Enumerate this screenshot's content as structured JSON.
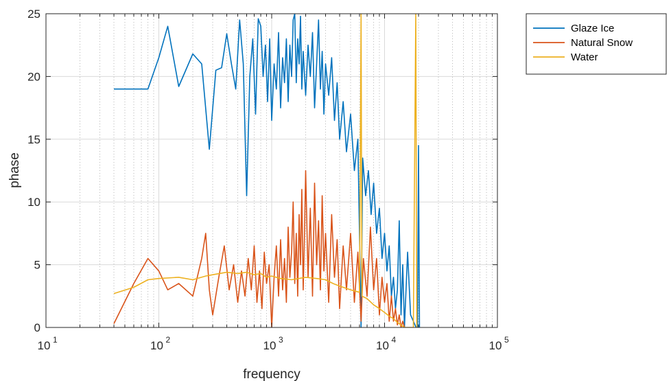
{
  "chart_data": {
    "type": "line",
    "title": "",
    "xlabel": "frequency",
    "ylabel": "phase",
    "xscale": "log",
    "xlim": [
      10,
      100000
    ],
    "ylim": [
      0,
      25
    ],
    "grid": true,
    "minor_grid": true,
    "legend_position": "outside-top-right",
    "x_ticks": [
      {
        "base": "10",
        "exp": "1"
      },
      {
        "base": "10",
        "exp": "2"
      },
      {
        "base": "10",
        "exp": "3"
      },
      {
        "base": "10",
        "exp": "4"
      },
      {
        "base": "10",
        "exp": "5"
      }
    ],
    "y_ticks": [
      "0",
      "5",
      "10",
      "15",
      "20",
      "25"
    ],
    "series": [
      {
        "name": "Glaze Ice",
        "color": "#0072BD",
        "points": [
          [
            40,
            19.0
          ],
          [
            60,
            19.0
          ],
          [
            80,
            19.0
          ],
          [
            100,
            21.5
          ],
          [
            120,
            24.0
          ],
          [
            150,
            19.2
          ],
          [
            200,
            21.8
          ],
          [
            240,
            21.0
          ],
          [
            280,
            14.2
          ],
          [
            320,
            20.5
          ],
          [
            360,
            20.7
          ],
          [
            400,
            23.4
          ],
          [
            440,
            21.0
          ],
          [
            480,
            19.0
          ],
          [
            520,
            24.5
          ],
          [
            560,
            21.0
          ],
          [
            600,
            10.5
          ],
          [
            640,
            20.0
          ],
          [
            680,
            23.0
          ],
          [
            720,
            17.0
          ],
          [
            760,
            24.6
          ],
          [
            800,
            24.0
          ],
          [
            840,
            20.0
          ],
          [
            880,
            22.5
          ],
          [
            920,
            18.0
          ],
          [
            960,
            23.0
          ],
          [
            1000,
            16.5
          ],
          [
            1050,
            21.0
          ],
          [
            1100,
            19.0
          ],
          [
            1150,
            23.5
          ],
          [
            1200,
            17.5
          ],
          [
            1250,
            21.5
          ],
          [
            1300,
            19.5
          ],
          [
            1350,
            23.0
          ],
          [
            1400,
            18.0
          ],
          [
            1450,
            22.5
          ],
          [
            1500,
            20.0
          ],
          [
            1550,
            24.5
          ],
          [
            1600,
            25.0
          ],
          [
            1650,
            19.5
          ],
          [
            1700,
            23.0
          ],
          [
            1750,
            21.0
          ],
          [
            1800,
            24.8
          ],
          [
            1850,
            19.0
          ],
          [
            1900,
            22.0
          ],
          [
            2000,
            18.5
          ],
          [
            2100,
            22.5
          ],
          [
            2200,
            20.0
          ],
          [
            2300,
            23.5
          ],
          [
            2400,
            17.5
          ],
          [
            2500,
            21.0
          ],
          [
            2600,
            24.5
          ],
          [
            2700,
            19.0
          ],
          [
            2800,
            22.0
          ],
          [
            2900,
            17.0
          ],
          [
            3000,
            21.0
          ],
          [
            3200,
            18.5
          ],
          [
            3400,
            21.5
          ],
          [
            3600,
            16.5
          ],
          [
            3800,
            19.5
          ],
          [
            4000,
            15.0
          ],
          [
            4300,
            18.0
          ],
          [
            4600,
            14.0
          ],
          [
            5000,
            17.0
          ],
          [
            5400,
            12.5
          ],
          [
            5800,
            15.0
          ],
          [
            6200,
            0.0
          ],
          [
            6400,
            13.5
          ],
          [
            6800,
            10.5
          ],
          [
            7200,
            12.5
          ],
          [
            7600,
            9.0
          ],
          [
            8000,
            11.5
          ],
          [
            8500,
            7.5
          ],
          [
            9000,
            9.5
          ],
          [
            9500,
            5.5
          ],
          [
            10000,
            7.5
          ],
          [
            10500,
            4.5
          ],
          [
            11000,
            6.5
          ],
          [
            11500,
            2.5
          ],
          [
            12000,
            4.0
          ],
          [
            12500,
            1.5
          ],
          [
            13000,
            3.0
          ],
          [
            13500,
            8.5
          ],
          [
            14000,
            1.0
          ],
          [
            14500,
            5.0
          ],
          [
            15000,
            0.0
          ],
          [
            16000,
            6.0
          ],
          [
            17000,
            1.0
          ],
          [
            18000,
            0.5
          ],
          [
            19000,
            0.0
          ],
          [
            19600,
            0.0
          ],
          [
            20000,
            14.5
          ],
          [
            20400,
            0.0
          ]
        ]
      },
      {
        "name": "Natural Snow",
        "color": "#D95319",
        "points": [
          [
            40,
            0.3
          ],
          [
            60,
            3.5
          ],
          [
            80,
            5.5
          ],
          [
            100,
            4.5
          ],
          [
            120,
            3.0
          ],
          [
            150,
            3.5
          ],
          [
            200,
            2.5
          ],
          [
            240,
            5.5
          ],
          [
            260,
            7.5
          ],
          [
            280,
            3.0
          ],
          [
            300,
            1.0
          ],
          [
            340,
            4.0
          ],
          [
            380,
            6.5
          ],
          [
            420,
            3.0
          ],
          [
            460,
            5.0
          ],
          [
            500,
            2.0
          ],
          [
            540,
            4.5
          ],
          [
            580,
            2.5
          ],
          [
            620,
            5.5
          ],
          [
            660,
            3.0
          ],
          [
            700,
            6.5
          ],
          [
            740,
            2.0
          ],
          [
            780,
            4.5
          ],
          [
            820,
            1.5
          ],
          [
            860,
            6.0
          ],
          [
            900,
            3.5
          ],
          [
            950,
            5.0
          ],
          [
            1000,
            0.0
          ],
          [
            1050,
            4.0
          ],
          [
            1100,
            6.5
          ],
          [
            1150,
            2.5
          ],
          [
            1200,
            7.0
          ],
          [
            1250,
            3.0
          ],
          [
            1300,
            5.5
          ],
          [
            1350,
            2.0
          ],
          [
            1400,
            8.0
          ],
          [
            1450,
            4.0
          ],
          [
            1500,
            6.0
          ],
          [
            1550,
            10.0
          ],
          [
            1600,
            3.5
          ],
          [
            1650,
            7.5
          ],
          [
            1700,
            2.5
          ],
          [
            1750,
            9.0
          ],
          [
            1800,
            5.0
          ],
          [
            1850,
            11.0
          ],
          [
            1900,
            3.0
          ],
          [
            1950,
            7.0
          ],
          [
            2000,
            12.5
          ],
          [
            2100,
            4.0
          ],
          [
            2200,
            9.5
          ],
          [
            2300,
            2.5
          ],
          [
            2400,
            11.5
          ],
          [
            2500,
            5.0
          ],
          [
            2600,
            8.5
          ],
          [
            2700,
            3.0
          ],
          [
            2800,
            10.5
          ],
          [
            2900,
            4.5
          ],
          [
            3000,
            7.5
          ],
          [
            3200,
            2.0
          ],
          [
            3400,
            9.0
          ],
          [
            3600,
            4.0
          ],
          [
            3800,
            7.0
          ],
          [
            4000,
            1.5
          ],
          [
            4300,
            6.5
          ],
          [
            4600,
            3.0
          ],
          [
            5000,
            7.5
          ],
          [
            5400,
            2.0
          ],
          [
            5800,
            6.0
          ],
          [
            6200,
            0.5
          ],
          [
            6500,
            5.5
          ],
          [
            7000,
            2.5
          ],
          [
            7500,
            8.0
          ],
          [
            8000,
            3.0
          ],
          [
            8500,
            5.5
          ],
          [
            9000,
            1.0
          ],
          [
            9500,
            4.0
          ],
          [
            10000,
            2.0
          ],
          [
            10500,
            3.5
          ],
          [
            11000,
            0.5
          ],
          [
            11500,
            2.5
          ],
          [
            12000,
            0.5
          ],
          [
            12500,
            1.5
          ],
          [
            13000,
            0.2
          ],
          [
            13500,
            1.0
          ],
          [
            14000,
            0.0
          ],
          [
            14500,
            0.5
          ],
          [
            15000,
            0.0
          ]
        ]
      },
      {
        "name": "Water",
        "color": "#EDB120",
        "points": [
          [
            40,
            2.7
          ],
          [
            60,
            3.2
          ],
          [
            80,
            3.8
          ],
          [
            100,
            3.9
          ],
          [
            150,
            4.0
          ],
          [
            200,
            3.8
          ],
          [
            260,
            4.1
          ],
          [
            300,
            4.2
          ],
          [
            400,
            4.4
          ],
          [
            500,
            4.3
          ],
          [
            600,
            4.4
          ],
          [
            700,
            4.2
          ],
          [
            800,
            4.3
          ],
          [
            900,
            4.0
          ],
          [
            1000,
            4.1
          ],
          [
            1200,
            3.9
          ],
          [
            1500,
            3.8
          ],
          [
            2000,
            4.0
          ],
          [
            2500,
            3.9
          ],
          [
            3000,
            3.8
          ],
          [
            3500,
            3.5
          ],
          [
            4000,
            3.3
          ],
          [
            5000,
            3.0
          ],
          [
            6000,
            2.8
          ],
          [
            6200,
            25.0
          ],
          [
            6300,
            2.5
          ],
          [
            7000,
            2.3
          ],
          [
            8000,
            1.8
          ],
          [
            9000,
            1.5
          ],
          [
            10000,
            1.2
          ],
          [
            11000,
            0.9
          ],
          [
            12000,
            0.7
          ],
          [
            13000,
            0.4
          ],
          [
            14000,
            0.2
          ],
          [
            15000,
            0.0
          ],
          [
            18000,
            0.0
          ],
          [
            18900,
            25.0
          ],
          [
            19300,
            0.0
          ]
        ]
      }
    ]
  }
}
